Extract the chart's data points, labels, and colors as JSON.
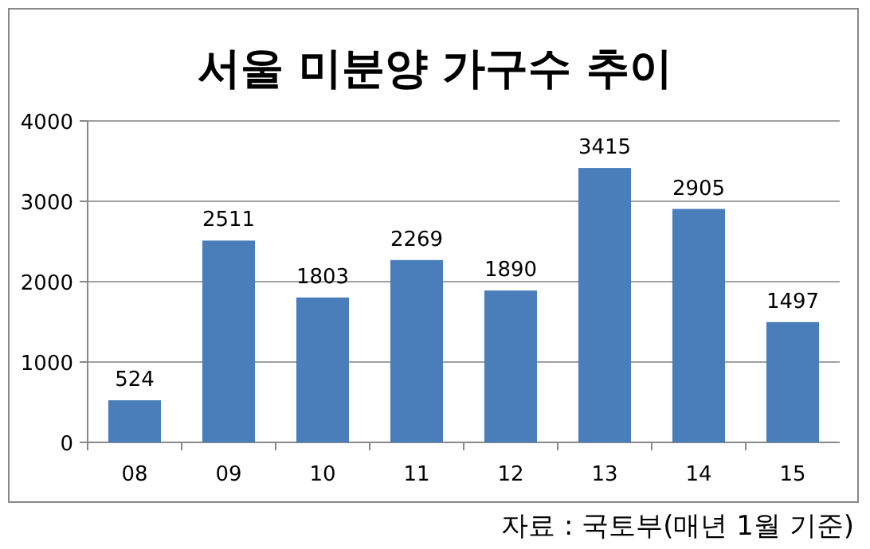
{
  "chart_data": {
    "type": "bar",
    "title": "서울 미분양 가구수 추이",
    "categories": [
      "08",
      "09",
      "10",
      "11",
      "12",
      "13",
      "14",
      "15"
    ],
    "values": [
      524,
      2511,
      1803,
      2269,
      1890,
      3415,
      2905,
      1497
    ],
    "color": "#4a7ebb",
    "ylim": [
      0,
      4000
    ],
    "yticks": [
      0,
      1000,
      2000,
      3000,
      4000
    ],
    "grid": "y",
    "data_labels": true,
    "annotations": [
      "자료 : 국토부(매년 1월 기준)"
    ]
  }
}
